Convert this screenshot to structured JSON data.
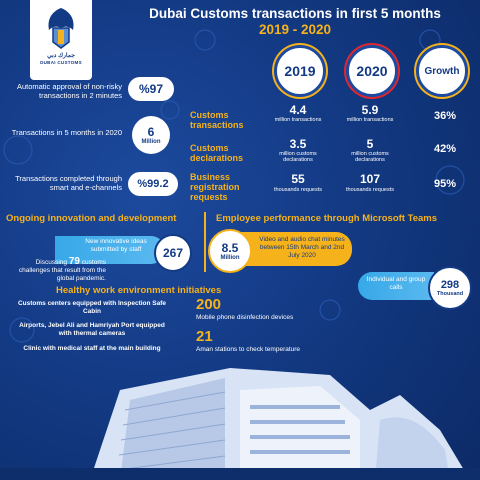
{
  "header": {
    "title_line1": "Dubai Customs transactions in first 5 months",
    "title_line2": "2019 - 2020",
    "logo_ar": "جمارك دبي",
    "logo_en": "DUBAI CUSTOMS"
  },
  "columns": {
    "y2019": "2019",
    "y2020": "2020",
    "growth": "Growth"
  },
  "left_stats": [
    {
      "text": "Automatic approval of non-risky transactions in 2 minutes",
      "value": "%97"
    },
    {
      "text": "Transactions in 5 months in 2020",
      "value": "6",
      "unit": "Million"
    },
    {
      "text": "Transactions completed through smart and e-channels",
      "value": "%99.2"
    }
  ],
  "table_rows": [
    {
      "label": "Customs transactions",
      "v2019": "4.4",
      "u2019": "million transactions",
      "v2020": "5.9",
      "u2020": "million transactions",
      "growth": "36%"
    },
    {
      "label": "Customs declarations",
      "v2019": "3.5",
      "u2019": "million customs declarations",
      "v2020": "5",
      "u2020": "million customs declarations",
      "growth": "42%"
    },
    {
      "label": "Business registration requests",
      "v2019": "55",
      "u2019": "thousands requests",
      "v2020": "107",
      "u2020": "thousands requests",
      "growth": "95%"
    }
  ],
  "innovation": {
    "title": "Ongoing innovation and development",
    "ideas_text": "New innovative ideas submitted by staff",
    "ideas_value": "267",
    "discussing_prefix": "Discussing",
    "discussing_num": "79",
    "discussing_rest": "customs challenges that result from the global pandemic."
  },
  "teams": {
    "title": "Employee performance through Microsoft Teams",
    "minutes_value": "8.5",
    "minutes_unit": "Million",
    "minutes_text": "Video and audio chat minutes between 15th March and 2nd July 2020",
    "calls_text": "Individual and group calls",
    "calls_value": "298",
    "calls_unit": "Thousand"
  },
  "healthy": {
    "title": "Healthy work environment initiatives",
    "items": [
      "Customs centers equipped with Inspection Safe Cabin",
      "Airports, Jebel Ali and Hamriyah Port equipped with thermal cameras",
      "Clinic with medical staff at the main building"
    ],
    "devices_value": "200",
    "devices_text": "Mobile phone disinfection devices",
    "stations_value": "21",
    "stations_text": "Aman stations to check temperature"
  },
  "colors": {
    "navy": "#133a84",
    "gold": "#f6b21a",
    "red": "#e2262e",
    "lightblue": "#37a8e8"
  }
}
